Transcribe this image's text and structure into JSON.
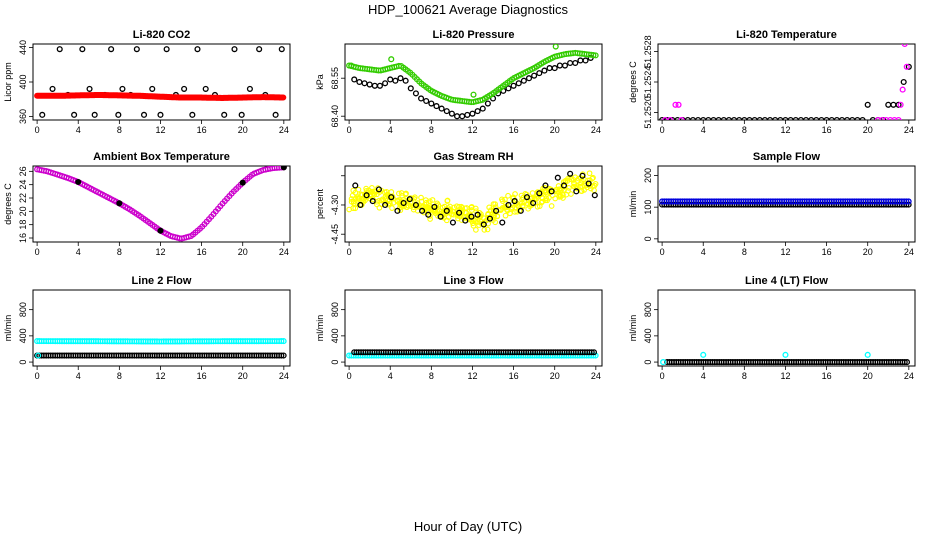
{
  "figure": {
    "title": "HDP_100621  Average Diagnostics",
    "xlabel": "Hour of Day (UTC)"
  },
  "chart_data": [
    {
      "type": "scatter",
      "title": "Li-820 CO2",
      "ylabel": "Licor ppm",
      "xticks": [
        0,
        4,
        8,
        12,
        16,
        20,
        24
      ],
      "xlim": [
        -0.4,
        24.6
      ],
      "yticks": [
        360,
        400,
        440
      ],
      "ytick_labels": [
        "360",
        "400",
        "440"
      ],
      "ylim": [
        356,
        444
      ],
      "series": [
        {
          "name": "raw",
          "color": "#000000",
          "style": "open",
          "x": [
            0.5,
            1.5,
            2.2,
            3,
            3.6,
            4.4,
            5.1,
            5.6,
            6.6,
            7.2,
            7.9,
            8.3,
            9.1,
            9.7,
            10.4,
            11.2,
            12,
            12.6,
            13.5,
            14.3,
            15.1,
            15.6,
            16.4,
            17.3,
            18.2,
            19.2,
            19.9,
            20.7,
            21.6,
            22.2,
            23.2,
            23.8
          ],
          "y": [
            362,
            392,
            438,
            385,
            362,
            438,
            392,
            362,
            385,
            438,
            362,
            392,
            385,
            438,
            362,
            392,
            362,
            438,
            385,
            392,
            362,
            438,
            392,
            385,
            362,
            438,
            362,
            392,
            438,
            385,
            362,
            438
          ]
        },
        {
          "name": "average",
          "color": "#ff0000",
          "style": "line",
          "x": [
            0,
            2,
            4,
            6,
            8,
            10,
            12,
            14,
            16,
            18,
            20,
            22,
            24
          ],
          "y": [
            384,
            384,
            384.5,
            385,
            384.5,
            384,
            383,
            382,
            382,
            381.5,
            382,
            382.5,
            382
          ]
        }
      ]
    },
    {
      "type": "scatter",
      "title": "Li-820 Pressure",
      "ylabel": "kPa",
      "xticks": [
        0,
        4,
        8,
        12,
        16,
        20,
        24
      ],
      "xlim": [
        -0.4,
        24.6
      ],
      "yticks": [
        68.4,
        68.55
      ],
      "ytick_labels": [
        "68.40",
        "68.55"
      ],
      "ylim": [
        68.385,
        68.685
      ],
      "series": [
        {
          "name": "raw",
          "color": "#000000",
          "style": "open",
          "x": [
            0.5,
            1,
            1.5,
            2,
            2.5,
            3,
            3.5,
            4,
            4.5,
            5,
            5.5,
            6,
            6.5,
            7,
            7.5,
            8,
            8.5,
            9,
            9.5,
            10,
            10.5,
            11,
            11.5,
            12,
            12.5,
            13,
            13.5,
            14,
            14.5,
            15,
            15.5,
            16,
            16.5,
            17,
            17.5,
            18,
            18.5,
            19,
            19.5,
            20,
            20.5,
            21,
            21.5,
            22,
            22.5,
            23,
            23.5
          ],
          "y": [
            68.545,
            68.535,
            68.53,
            68.525,
            68.52,
            68.52,
            68.53,
            68.545,
            68.54,
            68.55,
            68.54,
            68.51,
            68.49,
            68.47,
            68.46,
            68.45,
            68.44,
            68.43,
            68.42,
            68.41,
            68.4,
            68.4,
            68.405,
            68.41,
            68.42,
            68.43,
            68.45,
            68.47,
            68.49,
            68.5,
            68.51,
            68.52,
            68.53,
            68.54,
            68.55,
            68.56,
            68.57,
            68.58,
            68.59,
            68.59,
            68.6,
            68.6,
            68.61,
            68.61,
            68.62,
            68.62,
            68.63
          ]
        },
        {
          "name": "average",
          "color": "#33cc00",
          "style": "dense",
          "x": [
            0,
            1,
            2,
            3,
            4,
            5,
            6,
            7,
            8,
            9,
            10,
            11,
            12,
            13,
            14,
            15,
            16,
            17,
            18,
            19,
            20,
            21,
            22,
            23,
            24
          ],
          "y": [
            68.6,
            68.59,
            68.585,
            68.58,
            68.59,
            68.6,
            68.57,
            68.53,
            68.5,
            68.48,
            68.465,
            68.46,
            68.455,
            68.465,
            68.49,
            68.52,
            68.55,
            68.57,
            68.59,
            68.615,
            68.635,
            68.645,
            68.65,
            68.645,
            68.64
          ]
        },
        {
          "name": "outlier",
          "color": "#33cc00",
          "style": "open",
          "x": [
            20.1,
            12.1,
            4.1,
            0.2
          ],
          "y": [
            68.675,
            68.485,
            68.625,
            68.6
          ]
        }
      ]
    },
    {
      "type": "scatter",
      "title": "Li-820 Temperature",
      "ylabel": "degrees C",
      "xticks": [
        0,
        4,
        8,
        12,
        16,
        20,
        24
      ],
      "xlim": [
        -0.4,
        24.6
      ],
      "yticks": [
        51.252,
        51.2524,
        51.2528
      ],
      "ytick_labels": [
        "51.2520",
        "51.2524",
        "51.2528"
      ],
      "ylim": [
        51.2519,
        51.2529
      ],
      "series": [
        {
          "name": "raw",
          "color": "#000000",
          "style": "open",
          "x": [
            0,
            0.5,
            1,
            1.5,
            2,
            2.5,
            3,
            3.5,
            4,
            4.5,
            5,
            5.5,
            6,
            6.5,
            7,
            7.5,
            8,
            8.5,
            9,
            9.5,
            10,
            10.5,
            11,
            11.5,
            12,
            12.5,
            13,
            13.5,
            14,
            14.5,
            15,
            15.5,
            16,
            16.5,
            17,
            17.5,
            18,
            18.5,
            19,
            19.5,
            20,
            20.5,
            21,
            21.5,
            22,
            22.5,
            23,
            23.5,
            24
          ],
          "y": [
            51.2519,
            51.2519,
            51.2519,
            51.2519,
            51.2519,
            51.2519,
            51.2519,
            51.2519,
            51.2519,
            51.2519,
            51.2519,
            51.2519,
            51.2519,
            51.2519,
            51.2519,
            51.2519,
            51.2519,
            51.2519,
            51.2519,
            51.2519,
            51.2519,
            51.2519,
            51.2519,
            51.2519,
            51.2519,
            51.2519,
            51.2519,
            51.2519,
            51.2519,
            51.2519,
            51.2519,
            51.2519,
            51.2519,
            51.2519,
            51.2519,
            51.2519,
            51.2519,
            51.2519,
            51.2519,
            51.2519,
            51.2521,
            51.2519,
            51.2519,
            51.2519,
            51.2521,
            51.2521,
            51.2521,
            51.2524,
            51.2526
          ]
        },
        {
          "name": "average",
          "color": "#ff00ff",
          "style": "open",
          "x": [
            0.3,
            0.8,
            1.3,
            1.6,
            1.9,
            21,
            21.4,
            21.8,
            22.2,
            22.6,
            23,
            23.2,
            23.4,
            23.6,
            23.8
          ],
          "y": [
            51.2519,
            51.2519,
            51.2521,
            51.2521,
            51.2519,
            51.2519,
            51.2519,
            51.2519,
            51.2519,
            51.2519,
            51.2519,
            51.2521,
            51.2523,
            51.2529,
            51.2526
          ]
        }
      ]
    },
    {
      "type": "scatter",
      "title": "Ambient Box Temperature",
      "ylabel": "degrees C",
      "xticks": [
        0,
        4,
        8,
        12,
        16,
        20,
        24
      ],
      "xlim": [
        -0.4,
        24.6
      ],
      "yticks": [
        16,
        18,
        20,
        22,
        24,
        26
      ],
      "ytick_labels": [
        "16",
        "18",
        "20",
        "22",
        "24",
        "26"
      ],
      "ylim": [
        15.4,
        26.8
      ],
      "series": [
        {
          "name": "average",
          "color": "#cc00cc",
          "style": "dense",
          "x": [
            0,
            1,
            2,
            3,
            4,
            5,
            6,
            7,
            8,
            9,
            10,
            11,
            12,
            13,
            14,
            15,
            16,
            17,
            18,
            19,
            20,
            21,
            22,
            23,
            24
          ],
          "y": [
            26.3,
            26,
            25.5,
            25,
            24.4,
            23.6,
            22.8,
            22,
            21.2,
            20.3,
            19.3,
            18.2,
            17.1,
            16.3,
            15.9,
            16.3,
            17.6,
            19.3,
            21.1,
            22.8,
            24.3,
            25.6,
            26.2,
            26.5,
            26.6
          ]
        },
        {
          "name": "raw",
          "color": "#000000",
          "style": "filled",
          "x": [
            4,
            8,
            12,
            20,
            24
          ],
          "y": [
            24.4,
            21.2,
            17.1,
            24.3,
            26.6
          ]
        }
      ]
    },
    {
      "type": "scatter",
      "title": "Gas Stream RH",
      "ylabel": "percent",
      "xticks": [
        0,
        4,
        8,
        12,
        16,
        20,
        24
      ],
      "xlim": [
        -0.4,
        24.6
      ],
      "yticks": [
        -4.45,
        -4.3,
        -4.15
      ],
      "ytick_labels": [
        "-4.45",
        "-4.30",
        ""
      ],
      "ylim": [
        -4.49,
        -4.1
      ],
      "series": [
        {
          "name": "average",
          "color": "#ffff00",
          "style": "cloud",
          "x": [
            0,
            2,
            4,
            6,
            8,
            10,
            12,
            13,
            14,
            16,
            18,
            20,
            22,
            24
          ],
          "y": [
            -4.28,
            -4.25,
            -4.27,
            -4.3,
            -4.32,
            -4.34,
            -4.36,
            -4.38,
            -4.35,
            -4.3,
            -4.27,
            -4.24,
            -4.19,
            -4.2
          ],
          "spread": 0.065,
          "count": 420
        },
        {
          "name": "raw",
          "color": "#000000",
          "style": "open",
          "x": [
            0.6,
            1.1,
            1.7,
            2.3,
            2.9,
            3.5,
            4.1,
            4.7,
            5.3,
            5.9,
            6.5,
            7.1,
            7.7,
            8.3,
            8.9,
            9.5,
            10.1,
            10.7,
            11.3,
            11.9,
            12.5,
            13.1,
            13.7,
            14.3,
            14.9,
            15.5,
            16.1,
            16.7,
            17.3,
            17.9,
            18.5,
            19.1,
            19.7,
            20.3,
            20.9,
            21.5,
            22.1,
            22.7,
            23.3,
            23.9
          ],
          "y": [
            -4.2,
            -4.3,
            -4.25,
            -4.28,
            -4.22,
            -4.3,
            -4.26,
            -4.33,
            -4.29,
            -4.27,
            -4.3,
            -4.33,
            -4.35,
            -4.31,
            -4.36,
            -4.33,
            -4.39,
            -4.34,
            -4.38,
            -4.36,
            -4.35,
            -4.4,
            -4.37,
            -4.33,
            -4.39,
            -4.3,
            -4.28,
            -4.33,
            -4.26,
            -4.29,
            -4.24,
            -4.2,
            -4.23,
            -4.16,
            -4.2,
            -4.14,
            -4.23,
            -4.15,
            -4.19,
            -4.25
          ]
        }
      ]
    },
    {
      "type": "scatter",
      "title": "Sample Flow",
      "ylabel": "ml/min",
      "xticks": [
        0,
        4,
        8,
        12,
        16,
        20,
        24
      ],
      "xlim": [
        -0.4,
        24.6
      ],
      "yticks": [
        0,
        100,
        200
      ],
      "ytick_labels": [
        "0",
        "100",
        "200"
      ],
      "ylim": [
        -10,
        230
      ],
      "series": [
        {
          "name": "raw",
          "color": "#000000",
          "style": "dense",
          "x": [
            0,
            24
          ],
          "y": [
            108,
            108
          ]
        },
        {
          "name": "average",
          "color": "#0000dd",
          "style": "dense",
          "x": [
            0,
            24
          ],
          "y": [
            118,
            118
          ]
        }
      ]
    },
    {
      "type": "scatter",
      "title": "Line 2 Flow",
      "ylabel": "ml/min",
      "xticks": [
        0,
        4,
        8,
        12,
        16,
        20,
        24
      ],
      "xlim": [
        -0.4,
        24.6
      ],
      "yticks": [
        0,
        400,
        800
      ],
      "ytick_labels": [
        "0",
        "400",
        "800"
      ],
      "ylim": [
        -60,
        1100
      ],
      "series": [
        {
          "name": "average",
          "color": "#00ffff",
          "style": "dense",
          "x": [
            0,
            6,
            12,
            18,
            24
          ],
          "y": [
            320,
            318,
            314,
            318,
            320
          ]
        },
        {
          "name": "raw",
          "color": "#000000",
          "style": "dense",
          "x": [
            0,
            24
          ],
          "y": [
            100,
            100
          ]
        },
        {
          "name": "start",
          "color": "#00ffff",
          "style": "open",
          "x": [
            0.1
          ],
          "y": [
            100
          ]
        }
      ]
    },
    {
      "type": "scatter",
      "title": "Line 3 Flow",
      "ylabel": "ml/min",
      "xticks": [
        0,
        4,
        8,
        12,
        16,
        20,
        24
      ],
      "xlim": [
        -0.4,
        24.6
      ],
      "yticks": [
        0,
        400,
        800
      ],
      "ytick_labels": [
        "0",
        "400",
        "800"
      ],
      "ylim": [
        -60,
        1100
      ],
      "series": [
        {
          "name": "average",
          "color": "#00ffff",
          "style": "dense",
          "x": [
            0,
            24
          ],
          "y": [
            100,
            100
          ]
        },
        {
          "name": "raw",
          "color": "#000000",
          "style": "dense",
          "x": [
            0.5,
            24
          ],
          "y": [
            150,
            150
          ]
        }
      ]
    },
    {
      "type": "scatter",
      "title": "Line 4 (LT) Flow",
      "ylabel": "ml/min",
      "xticks": [
        0,
        4,
        8,
        12,
        16,
        20,
        24
      ],
      "xlim": [
        -0.4,
        24.6
      ],
      "yticks": [
        0,
        400,
        800
      ],
      "ytick_labels": [
        "0",
        "400",
        "800"
      ],
      "ylim": [
        -60,
        1100
      ],
      "series": [
        {
          "name": "raw",
          "color": "#000000",
          "style": "dense",
          "x": [
            0.5,
            24
          ],
          "y": [
            0,
            0
          ]
        },
        {
          "name": "average",
          "color": "#00ffff",
          "style": "open",
          "x": [
            0.1,
            4,
            12,
            20
          ],
          "y": [
            0,
            110,
            110,
            110
          ]
        }
      ]
    }
  ]
}
